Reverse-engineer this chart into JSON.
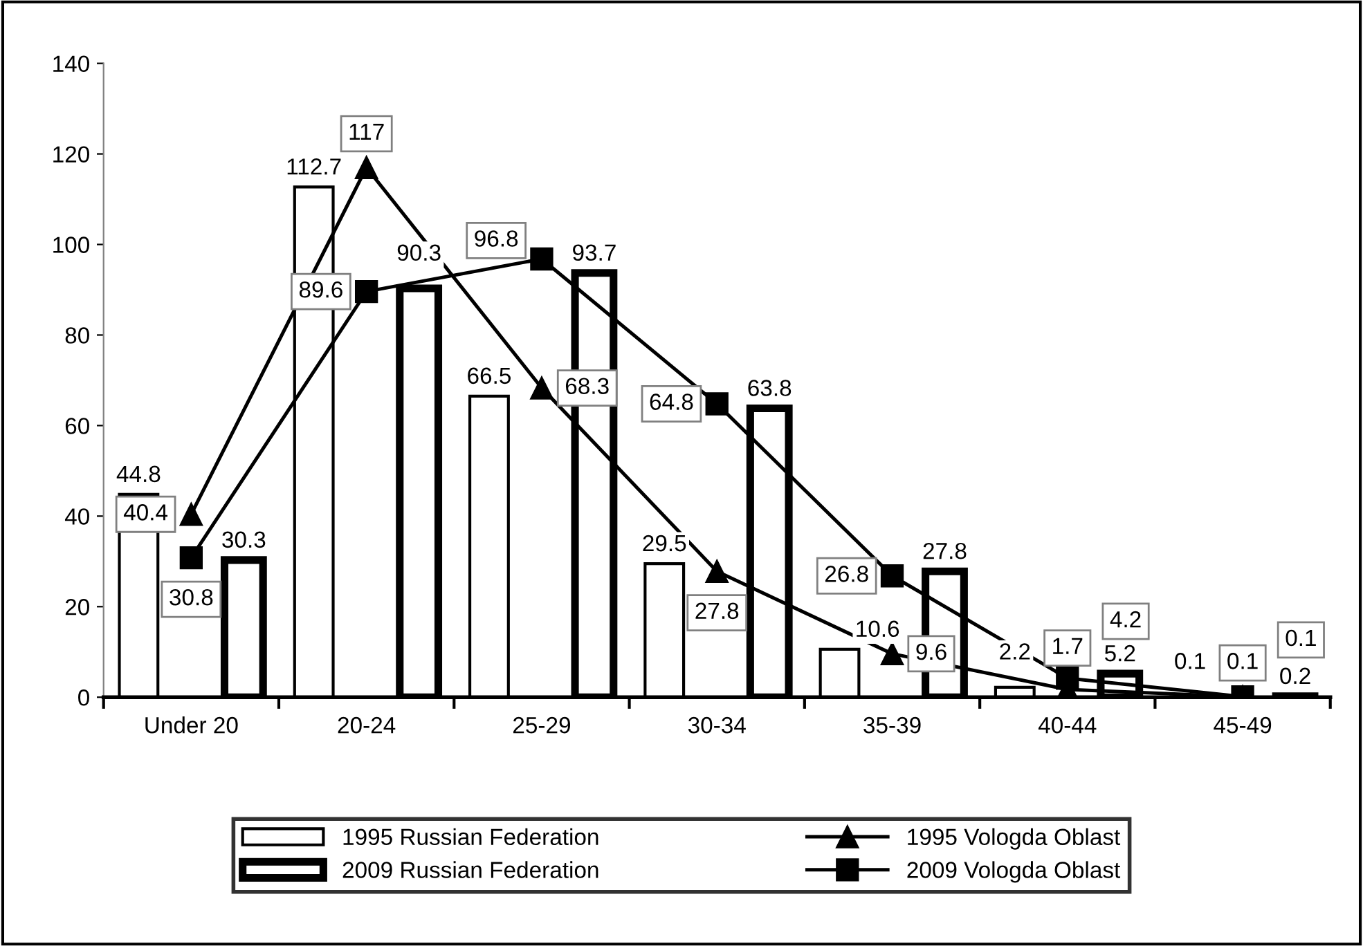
{
  "chart_data": {
    "type": "bar",
    "categories": [
      "Under 20",
      "20-24",
      "25-29",
      "30-34",
      "35-39",
      "40-44",
      "45-49"
    ],
    "series": [
      {
        "name": "1995 Russian Federation",
        "type": "bar",
        "color": "#ffffff",
        "values": [
          44.8,
          112.7,
          66.5,
          29.5,
          10.6,
          2.2,
          0.1
        ]
      },
      {
        "name": "2009 Russian Federation",
        "type": "bar",
        "color": "#ffffff",
        "values": [
          30.3,
          90.3,
          93.7,
          63.8,
          27.8,
          5.2,
          0.2
        ]
      },
      {
        "name": "1995 Vologda Oblast",
        "type": "line",
        "marker": "triangle",
        "color": "#000000",
        "values": [
          40.4,
          117,
          68.3,
          27.8,
          9.6,
          1.7,
          0.1
        ]
      },
      {
        "name": "2009 Vologda Oblast",
        "type": "line",
        "marker": "square",
        "color": "#000000",
        "values": [
          30.8,
          89.6,
          96.8,
          64.8,
          26.8,
          4.2,
          0.1
        ]
      }
    ],
    "ylim": [
      0,
      140
    ],
    "yticks": [
      0,
      20,
      40,
      60,
      80,
      100,
      120,
      140
    ],
    "data_labels": true,
    "grid": false,
    "legend": "bottom"
  }
}
